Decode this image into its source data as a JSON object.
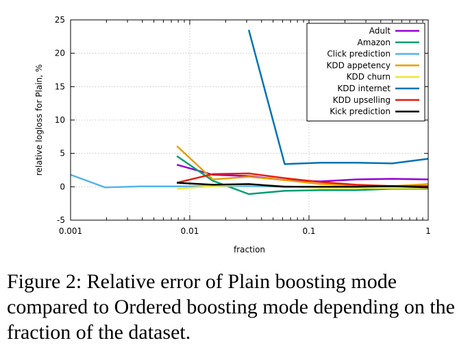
{
  "chart_data": {
    "type": "line",
    "title": "",
    "xlabel": "fraction",
    "ylabel": "relative logloss for Plain, %",
    "xscale": "log",
    "xlim": [
      0.001,
      1
    ],
    "ylim": [
      -5,
      25
    ],
    "xticks": [
      0.001,
      0.01,
      0.1,
      1
    ],
    "xtick_labels": [
      "0.001",
      "0.01",
      "0.1",
      "1"
    ],
    "yticks": [
      -5,
      0,
      5,
      10,
      15,
      20,
      25
    ],
    "ytick_labels": [
      "-5",
      "0",
      "5",
      "10",
      "15",
      "20",
      "25"
    ],
    "grid": true,
    "legend_position": "top-right",
    "series": [
      {
        "name": "Adult",
        "color": "#9400d3",
        "points": [
          [
            0.0078,
            3.3
          ],
          [
            0.0156,
            1.8
          ],
          [
            0.03125,
            1.6
          ],
          [
            0.0625,
            1.0
          ],
          [
            0.125,
            0.8
          ],
          [
            0.25,
            1.1
          ],
          [
            0.5,
            1.2
          ],
          [
            1,
            1.1
          ]
        ]
      },
      {
        "name": "Amazon",
        "color": "#009e73",
        "points": [
          [
            0.0078,
            4.6
          ],
          [
            0.0156,
            0.9
          ],
          [
            0.03125,
            -1.1
          ],
          [
            0.0625,
            -0.6
          ],
          [
            0.125,
            -0.5
          ],
          [
            0.25,
            -0.5
          ],
          [
            0.5,
            -0.3
          ],
          [
            1,
            -0.3
          ]
        ]
      },
      {
        "name": "Click prediction",
        "color": "#56b4e9",
        "points": [
          [
            0.001,
            1.8
          ],
          [
            0.00195,
            -0.1
          ],
          [
            0.0039,
            0.05
          ],
          [
            0.0078,
            0.05
          ],
          [
            0.0156,
            0.1
          ],
          [
            0.03125,
            0.1
          ],
          [
            0.0625,
            0.0
          ],
          [
            0.125,
            0.0
          ],
          [
            0.25,
            0.0
          ],
          [
            0.5,
            0.0
          ],
          [
            1,
            0.0
          ]
        ]
      },
      {
        "name": "KDD appetency",
        "color": "#e69f00",
        "points": [
          [
            0.0078,
            6.1
          ],
          [
            0.0156,
            1.1
          ],
          [
            0.03125,
            1.5
          ],
          [
            0.0625,
            1.0
          ],
          [
            0.125,
            0.4
          ],
          [
            0.25,
            0.2
          ],
          [
            0.5,
            0.1
          ],
          [
            1,
            0.4
          ]
        ]
      },
      {
        "name": "KDD churn",
        "color": "#f0e442",
        "points": [
          [
            0.0078,
            -0.3
          ],
          [
            0.0156,
            0.1
          ],
          [
            0.03125,
            0.3
          ],
          [
            0.0625,
            0.1
          ],
          [
            0.125,
            -0.2
          ],
          [
            0.25,
            -0.2
          ],
          [
            0.5,
            -0.2
          ],
          [
            1,
            -0.2
          ]
        ]
      },
      {
        "name": "KDD internet",
        "color": "#0072b2",
        "points": [
          [
            0.03125,
            23.5
          ],
          [
            0.0625,
            3.4
          ],
          [
            0.125,
            3.6
          ],
          [
            0.25,
            3.6
          ],
          [
            0.5,
            3.5
          ],
          [
            1,
            4.2
          ]
        ]
      },
      {
        "name": "KDD upselling",
        "color": "#e51e10",
        "points": [
          [
            0.0078,
            0.6
          ],
          [
            0.0156,
            1.9
          ],
          [
            0.03125,
            2.0
          ],
          [
            0.0625,
            1.3
          ],
          [
            0.125,
            0.7
          ],
          [
            0.25,
            0.3
          ],
          [
            0.5,
            0.1
          ],
          [
            1,
            0.1
          ]
        ]
      },
      {
        "name": "Kick prediction",
        "color": "#000000",
        "points": [
          [
            0.0078,
            0.6
          ],
          [
            0.0156,
            0.3
          ],
          [
            0.03125,
            0.4
          ],
          [
            0.0625,
            0.0
          ],
          [
            0.125,
            0.0
          ],
          [
            0.25,
            0.0
          ],
          [
            0.5,
            0.1
          ],
          [
            1,
            -0.1
          ]
        ]
      }
    ]
  },
  "caption": "Figure 2: Relative error of Plain boosting mode compared to Ordered boosting mode depending on the fraction of the dataset."
}
